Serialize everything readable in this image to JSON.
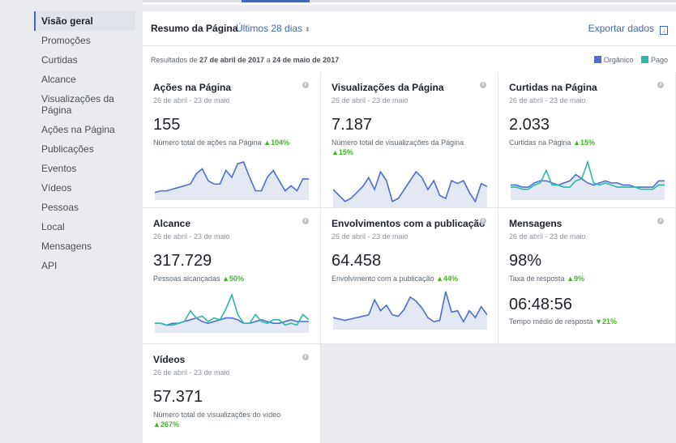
{
  "sidebar": {
    "items": [
      {
        "label": "Visão geral"
      },
      {
        "label": "Promoções"
      },
      {
        "label": "Curtidas"
      },
      {
        "label": "Alcance"
      },
      {
        "label": "Visualizações da Página"
      },
      {
        "label": "Ações na Página"
      },
      {
        "label": "Publicações"
      },
      {
        "label": "Eventos"
      },
      {
        "label": "Vídeos"
      },
      {
        "label": "Pessoas"
      },
      {
        "label": "Local"
      },
      {
        "label": "Mensagens"
      },
      {
        "label": "API"
      }
    ]
  },
  "header": {
    "title": "Resumo da Página",
    "period": "Últimos 28 dias",
    "export": "Exportar dados"
  },
  "subheader": {
    "prefix": "Resultados de",
    "start": "27 de abril de 2017",
    "mid": "a",
    "end": "24 de maio de 2017",
    "legend_organic": "Orgânico",
    "legend_paid": "Pago"
  },
  "colors": {
    "organic": "#4a6fd1",
    "paid": "#2bbaa4"
  },
  "cards": {
    "acoes": {
      "title": "Ações na Página",
      "date": "26 de abril - 23 de maio",
      "value": "155",
      "desc": "Número total de ações na Página",
      "change": "104%"
    },
    "visualizacoes": {
      "title": "Visualizações da Página",
      "date": "26 de abril - 23 de maio",
      "value": "7.187",
      "desc": "Número total de visualizações da Página",
      "change": "15%"
    },
    "curtidas": {
      "title": "Curtidas na Página",
      "date": "26 de abril - 23 de maio",
      "value": "2.033",
      "desc": "Curtidas na Página",
      "change": "15%"
    },
    "alcance": {
      "title": "Alcance",
      "date": "26 de abril - 23 de maio",
      "value": "317.729",
      "desc": "Pessoas alcançadas",
      "change": "50%"
    },
    "envolvimentos": {
      "title": "Envolvimentos com a publicação",
      "date": "26 de abril - 23 de maio",
      "value": "64.458",
      "desc": "Envolvimento com a publicação",
      "change": "44%"
    },
    "mensagens": {
      "title": "Mensagens",
      "date": "26 de abril - 23 de maio",
      "value": "98%",
      "desc": "Taxa de resposta",
      "change": "9%",
      "value2": "06:48:56",
      "desc2": "Tempo médio de resposta",
      "change2": "21%"
    },
    "videos": {
      "title": "Vídeos",
      "date": "26 de abril - 23 de maio",
      "value": "57.371",
      "desc": "Número total de visualizações do vídeo",
      "change": "267%"
    }
  },
  "sparks": {
    "acoes": {
      "organic": [
        3,
        4,
        4,
        5,
        6,
        7,
        8,
        14,
        17,
        10,
        8,
        8,
        16,
        12,
        20,
        21,
        12,
        4,
        4,
        12,
        16,
        10,
        4,
        7,
        4,
        11,
        11
      ],
      "paid": []
    },
    "visualizacoes": {
      "organic": [
        6,
        4,
        2,
        3,
        5,
        7,
        10,
        6,
        12,
        9,
        2,
        3,
        6,
        9,
        12,
        10,
        6,
        9,
        4,
        3,
        9,
        8,
        9,
        5,
        2,
        8,
        7
      ],
      "paid": []
    },
    "curtidas": {
      "organic": [
        6,
        6,
        5,
        5,
        7,
        8,
        8,
        7,
        6,
        7,
        8,
        11,
        9,
        7,
        6,
        7,
        8,
        7,
        7,
        6,
        6,
        5,
        5,
        5,
        5,
        8,
        8
      ],
      "paid": [
        5,
        5,
        4,
        4,
        6,
        7,
        13,
        6,
        6,
        5,
        5,
        8,
        9,
        17,
        7,
        6,
        7,
        6,
        5,
        5,
        5,
        5,
        4,
        4,
        4,
        6,
        6
      ]
    },
    "alcance": {
      "organic": [
        4,
        4,
        3,
        4,
        4,
        5,
        6,
        7,
        5,
        4,
        5,
        6,
        7,
        7,
        6,
        4,
        4,
        5,
        6,
        5,
        4,
        4,
        5,
        6,
        5,
        5,
        5
      ],
      "paid": [
        4,
        4,
        3,
        3,
        4,
        5,
        11,
        7,
        8,
        5,
        7,
        6,
        12,
        20,
        9,
        4,
        4,
        9,
        5,
        4,
        6,
        6,
        3,
        4,
        3,
        9,
        6
      ]
    },
    "envolvimentos": {
      "organic": [
        7,
        6,
        5,
        6,
        7,
        8,
        9,
        20,
        12,
        16,
        9,
        8,
        13,
        22,
        19,
        14,
        7,
        4,
        5,
        26,
        11,
        12,
        4,
        12,
        7,
        15,
        9
      ],
      "paid": []
    }
  }
}
